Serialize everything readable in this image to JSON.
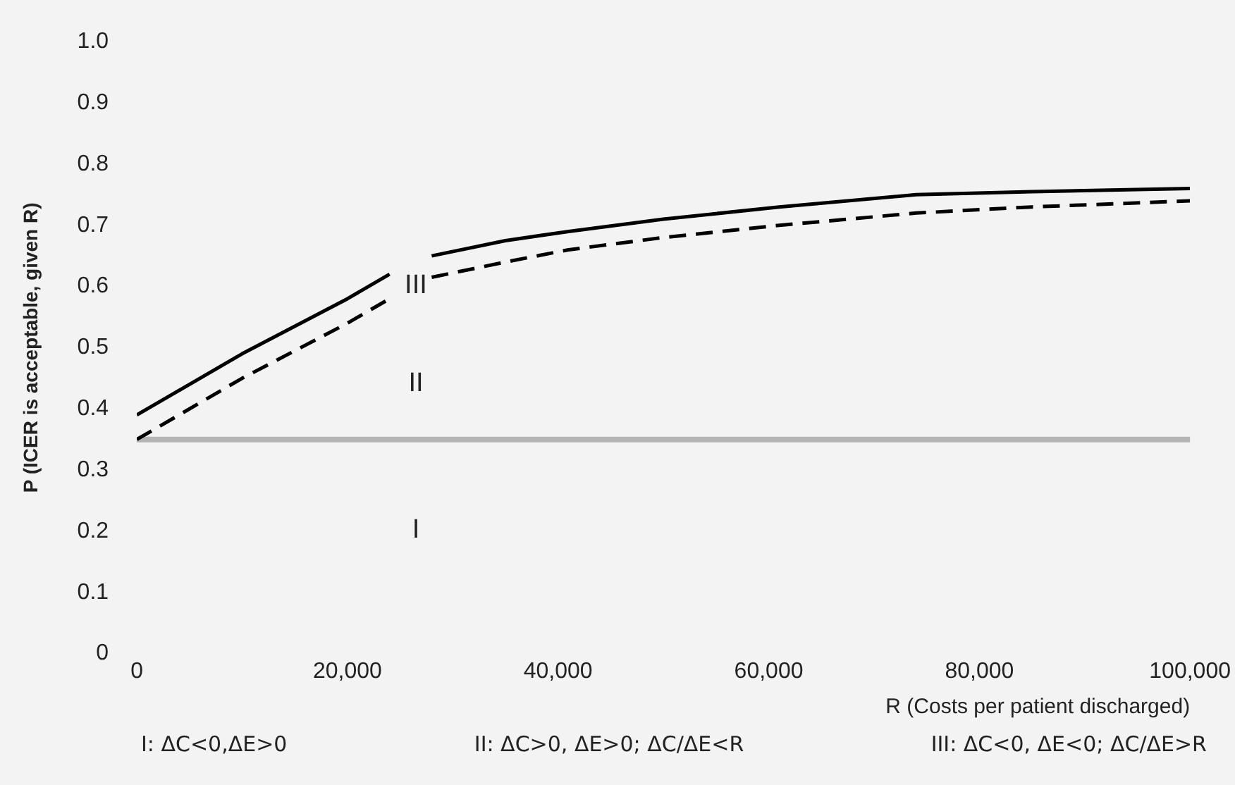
{
  "chart_data": {
    "type": "line",
    "xlabel": "R (Costs per patient discharged)",
    "ylabel": "P (ICER is acceptable, given R)",
    "x": [
      0,
      10000,
      20000,
      24000,
      26000,
      28000,
      35000,
      41000,
      50000,
      61000,
      74000,
      85000,
      100000
    ],
    "series": [
      {
        "color": "#000000",
        "line_style": "solid",
        "values": [
          0.39,
          0.49,
          0.58,
          0.62,
          null,
          0.65,
          0.675,
          0.69,
          0.71,
          0.73,
          0.75,
          0.755,
          0.76
        ]
      },
      {
        "color": "#000000",
        "line_style": "dashed",
        "values": [
          0.35,
          0.45,
          0.54,
          0.58,
          null,
          0.615,
          0.64,
          0.66,
          0.68,
          0.7,
          0.72,
          0.73,
          0.74
        ]
      }
    ],
    "xlim": [
      0,
      100000
    ],
    "xticks": [
      0,
      {
        "value": 20000,
        "label": "20,000"
      },
      {
        "value": 40000,
        "label": "40,000"
      },
      {
        "value": 60000,
        "label": "60,000"
      },
      {
        "value": 80000,
        "label": "80,000"
      },
      {
        "value": 100000,
        "label": "100,000"
      }
    ],
    "ylim": [
      0,
      1
    ],
    "yticks": [
      0,
      0.1,
      0.2,
      0.3,
      0.4,
      0.5,
      0.6,
      0.7,
      0.8,
      0.9,
      {
        "value": 1,
        "label": "1.0"
      }
    ],
    "ref_lines": [
      {
        "axis": "y",
        "value": 0.35,
        "color": "#b4b4b4"
      }
    ],
    "grid": false,
    "legend": false,
    "marker": "none",
    "annotations": [
      "I",
      "II",
      "III",
      "I: ΔC<0,ΔE>0",
      "II: ΔC>0, ΔE>0; ΔC/ΔE<R",
      "III: ΔC<0, ΔE<0; ΔC/ΔE>R"
    ]
  }
}
